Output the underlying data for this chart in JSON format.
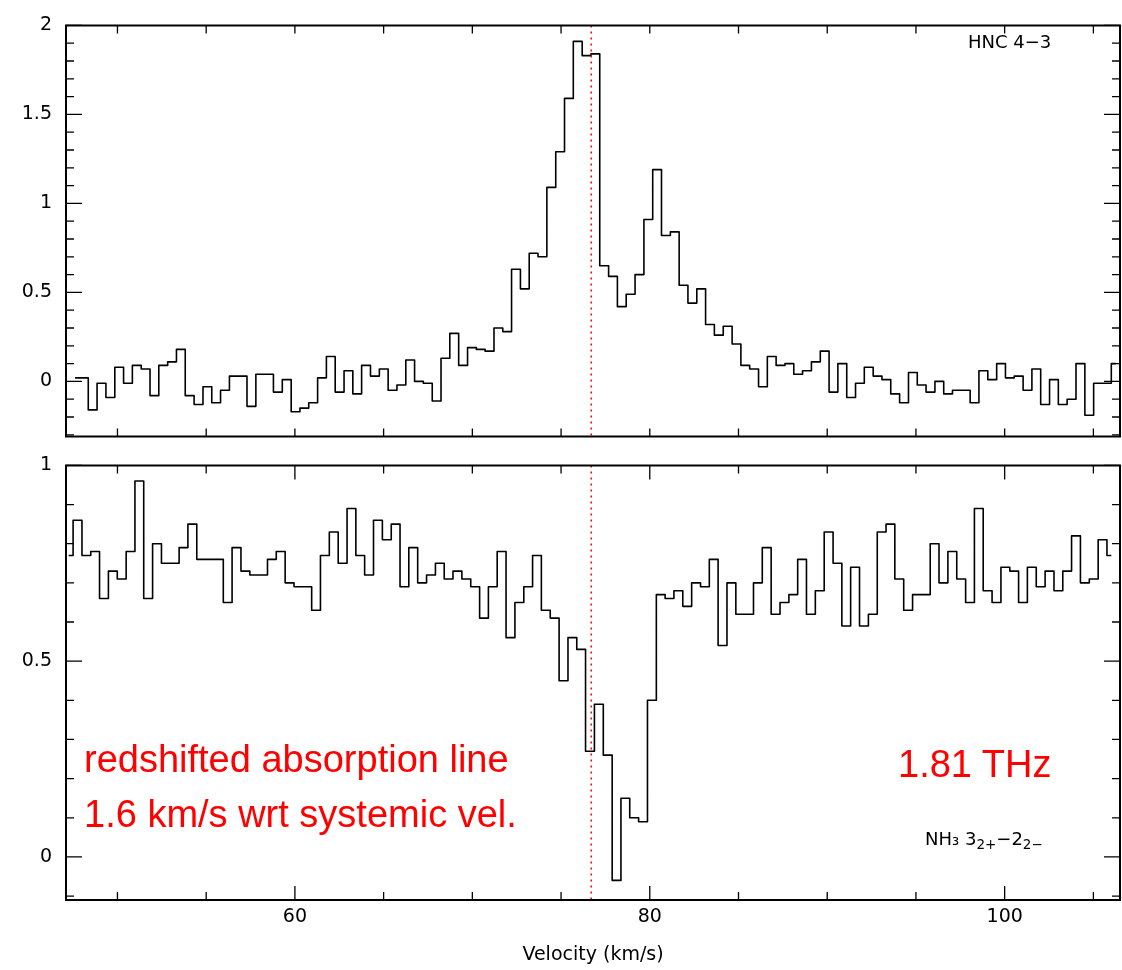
{
  "chart_data": [
    {
      "type": "step",
      "annotations": [
        "HNC 4−3"
      ],
      "x": [
        47.61,
        48.11,
        48.6,
        49.1,
        49.6,
        50.1,
        50.59,
        51.09,
        51.59,
        52.08,
        52.58,
        53.08,
        53.57,
        54.07,
        54.57,
        55.07,
        55.56,
        56.06,
        56.56,
        57.05,
        57.55,
        58.05,
        58.54,
        59.04,
        59.54,
        60.04,
        60.53,
        61.03,
        61.53,
        62.02,
        62.52,
        63.02,
        63.51,
        64.01,
        64.51,
        65.01,
        65.5,
        66.0,
        66.5,
        66.99,
        67.49,
        67.99,
        68.48,
        68.98,
        69.48,
        69.98,
        70.47,
        70.97,
        71.47,
        71.96,
        72.46,
        72.96,
        73.45,
        73.95,
        74.45,
        74.95,
        75.44,
        75.94,
        76.44,
        76.93,
        77.43,
        77.93,
        78.42,
        78.92,
        79.42,
        79.92,
        80.41,
        80.91,
        81.41,
        81.9,
        82.4,
        82.9,
        83.39,
        83.89,
        84.39,
        84.89,
        85.38,
        85.88,
        86.38,
        86.87,
        87.37,
        87.87,
        88.36,
        88.86,
        89.36,
        89.86,
        90.35,
        90.85,
        91.35,
        91.84,
        92.34,
        92.84,
        93.33,
        93.83,
        94.33,
        94.83,
        95.32,
        95.82,
        96.32,
        96.81,
        97.31,
        97.81,
        98.3,
        98.8,
        99.3,
        99.8,
        100.29,
        100.79,
        101.29,
        101.78,
        102.28,
        102.78,
        103.27,
        103.77,
        104.27,
        104.77,
        105.26,
        105.76,
        106.26
      ],
      "series": [
        {
          "color": "#000000",
          "values": [
            0.02,
            0.02,
            -0.16,
            -0.01,
            -0.09,
            0.08,
            -0.01,
            0.09,
            0.07,
            -0.08,
            0.09,
            0.11,
            0.18,
            -0.08,
            -0.13,
            -0.03,
            -0.12,
            -0.05,
            0.03,
            0.03,
            -0.14,
            0.04,
            0.04,
            -0.06,
            0.01,
            -0.17,
            -0.15,
            -0.12,
            0.02,
            0.14,
            -0.06,
            0.06,
            -0.07,
            0.09,
            0.03,
            0.07,
            -0.05,
            -0.02,
            0.12,
            0.0,
            -0.01,
            -0.11,
            0.13,
            0.27,
            0.09,
            0.19,
            0.18,
            0.17,
            0.3,
            0.28,
            0.63,
            0.52,
            0.72,
            0.7,
            1.09,
            1.29,
            1.59,
            1.91,
            1.83,
            1.84,
            0.65,
            0.59,
            0.42,
            0.49,
            0.6,
            0.91,
            1.19,
            0.82,
            0.84,
            0.54,
            0.44,
            0.52,
            0.32,
            0.26,
            0.31,
            0.21,
            0.09,
            0.07,
            -0.03,
            0.14,
            0.09,
            0.1,
            0.04,
            0.06,
            0.11,
            0.17,
            -0.06,
            0.1,
            -0.09,
            -0.01,
            0.08,
            0.03,
            0.01,
            -0.07,
            -0.12,
            0.05,
            -0.02,
            -0.06,
            0.0,
            -0.07,
            -0.05,
            -0.05,
            -0.12,
            0.06,
            0.01,
            0.1,
            0.02,
            0.03,
            -0.05,
            0.07,
            -0.13,
            0.01,
            -0.13,
            -0.1,
            0.1,
            -0.19,
            -0.01,
            -0.01,
            0.1
          ]
        }
      ],
      "xlim": [
        47.1,
        106.5
      ],
      "xticks": [
        {
          "value": 50,
          "label": null
        },
        {
          "value": 55,
          "label": null
        },
        {
          "value": 60,
          "label": null
        },
        {
          "value": 65,
          "label": null
        },
        {
          "value": 70,
          "label": null
        },
        {
          "value": 75,
          "label": null
        },
        {
          "value": 80,
          "label": null
        },
        {
          "value": 85,
          "label": null
        },
        {
          "value": 90,
          "label": null
        },
        {
          "value": 95,
          "label": null
        },
        {
          "value": 100,
          "label": null
        },
        {
          "value": 105,
          "label": null
        }
      ],
      "ylim": [
        -0.31,
        2
      ],
      "yticks": [
        {
          "value": -0.3,
          "label": null
        },
        {
          "value": -0.2,
          "label": null
        },
        {
          "value": -0.1,
          "label": null
        },
        0,
        {
          "value": 0.1,
          "label": null
        },
        {
          "value": 0.2,
          "label": null
        },
        {
          "value": 0.3,
          "label": null
        },
        {
          "value": 0.4,
          "label": null
        },
        0.5,
        {
          "value": 0.6,
          "label": null
        },
        {
          "value": 0.7,
          "label": null
        },
        {
          "value": 0.8,
          "label": null
        },
        {
          "value": 0.9,
          "label": null
        },
        1,
        {
          "value": 1.1,
          "label": null
        },
        {
          "value": 1.2,
          "label": null
        },
        {
          "value": 1.3,
          "label": null
        },
        {
          "value": 1.4,
          "label": null
        },
        1.5,
        {
          "value": 1.6,
          "label": null
        },
        {
          "value": 1.7,
          "label": null
        },
        {
          "value": 1.8,
          "label": null
        },
        {
          "value": 1.9,
          "label": null
        },
        2
      ],
      "tick_labels": "y",
      "ref_lines": [
        {
          "axis": "x",
          "value": 76.7,
          "color": "#ff0000",
          "line_style": "dotted"
        }
      ]
    },
    {
      "type": "step",
      "xlabel": "Velocity (km/s)",
      "annotations": [
        "redshifted absorption line",
        "1.6 km/s wrt systemic vel.",
        "1.81 THz",
        "NH₃ 3$_{2+}$−2$_{2−}$"
      ],
      "x": [
        47.25,
        47.75,
        48.25,
        48.74,
        49.24,
        49.74,
        50.24,
        50.74,
        51.23,
        51.73,
        52.23,
        52.73,
        53.23,
        53.72,
        54.22,
        54.72,
        55.22,
        55.72,
        56.21,
        56.71,
        57.21,
        57.71,
        58.21,
        58.7,
        59.2,
        59.7,
        60.2,
        60.7,
        61.19,
        61.69,
        62.19,
        62.69,
        63.19,
        63.68,
        64.18,
        64.68,
        65.18,
        65.68,
        66.17,
        66.67,
        67.17,
        67.67,
        68.17,
        68.66,
        69.16,
        69.66,
        70.16,
        70.66,
        71.15,
        71.65,
        72.15,
        72.65,
        73.15,
        73.64,
        74.14,
        74.64,
        75.14,
        75.64,
        76.13,
        76.63,
        77.13,
        77.63,
        78.13,
        78.62,
        79.12,
        79.62,
        80.12,
        80.62,
        81.11,
        81.61,
        82.11,
        82.61,
        83.11,
        83.6,
        84.1,
        84.6,
        85.1,
        85.6,
        86.09,
        86.59,
        87.09,
        87.59,
        88.09,
        88.58,
        89.08,
        89.58,
        90.08,
        90.58,
        91.07,
        91.57,
        92.07,
        92.57,
        93.07,
        93.56,
        94.06,
        94.56,
        95.06,
        95.56,
        96.05,
        96.55,
        97.05,
        97.55,
        98.05,
        98.54,
        99.04,
        99.54,
        100.04,
        100.54,
        101.03,
        101.53,
        102.03,
        102.53,
        103.03,
        103.52,
        104.02,
        104.52,
        105.02,
        105.52,
        106.01
      ],
      "series": [
        {
          "color": "#000000",
          "values": [
            0.77,
            0.86,
            0.77,
            0.78,
            0.66,
            0.73,
            0.71,
            0.78,
            0.96,
            0.66,
            0.8,
            0.75,
            0.75,
            0.79,
            0.85,
            0.76,
            0.76,
            0.76,
            0.65,
            0.79,
            0.73,
            0.72,
            0.72,
            0.76,
            0.78,
            0.7,
            0.69,
            0.69,
            0.63,
            0.77,
            0.83,
            0.75,
            0.89,
            0.77,
            0.72,
            0.86,
            0.81,
            0.85,
            0.69,
            0.79,
            0.7,
            0.72,
            0.75,
            0.71,
            0.73,
            0.71,
            0.69,
            0.61,
            0.69,
            0.78,
            0.56,
            0.65,
            0.69,
            0.77,
            0.63,
            0.61,
            0.45,
            0.56,
            0.53,
            0.27,
            0.39,
            0.26,
            -0.06,
            0.15,
            0.1,
            0.09,
            0.4,
            0.67,
            0.66,
            0.68,
            0.64,
            0.7,
            0.69,
            0.76,
            0.54,
            0.7,
            0.62,
            0.62,
            0.7,
            0.79,
            0.62,
            0.65,
            0.67,
            0.76,
            0.62,
            0.68,
            0.83,
            0.75,
            0.59,
            0.74,
            0.59,
            0.62,
            0.83,
            0.85,
            0.71,
            0.63,
            0.67,
            0.67,
            0.8,
            0.7,
            0.78,
            0.71,
            0.65,
            0.89,
            0.68,
            0.65,
            0.74,
            0.73,
            0.65,
            0.74,
            0.69,
            0.73,
            0.68,
            0.73,
            0.82,
            0.7,
            0.71,
            0.81,
            0.77
          ]
        }
      ],
      "xlim": [
        47.1,
        106.5
      ],
      "xticks": [
        {
          "value": 50,
          "label": null
        },
        {
          "value": 55,
          "label": null
        },
        60,
        {
          "value": 65,
          "label": null
        },
        {
          "value": 70,
          "label": null
        },
        {
          "value": 75,
          "label": null
        },
        80,
        {
          "value": 85,
          "label": null
        },
        {
          "value": 90,
          "label": null
        },
        {
          "value": 95,
          "label": null
        },
        100,
        {
          "value": 105,
          "label": null
        }
      ],
      "ylim": [
        -0.11,
        1
      ],
      "yticks": [
        {
          "value": -0.1,
          "label": null
        },
        0,
        {
          "value": 0.1,
          "label": null
        },
        {
          "value": 0.2,
          "label": null
        },
        {
          "value": 0.3,
          "label": null
        },
        {
          "value": 0.4,
          "label": null
        },
        0.5,
        {
          "value": 0.6,
          "label": null
        },
        {
          "value": 0.7,
          "label": null
        },
        {
          "value": 0.8,
          "label": null
        },
        {
          "value": 0.9,
          "label": null
        },
        1
      ],
      "ref_lines": [
        {
          "axis": "x",
          "value": 76.7,
          "color": "#ff0000",
          "line_style": "dotted"
        }
      ]
    }
  ]
}
